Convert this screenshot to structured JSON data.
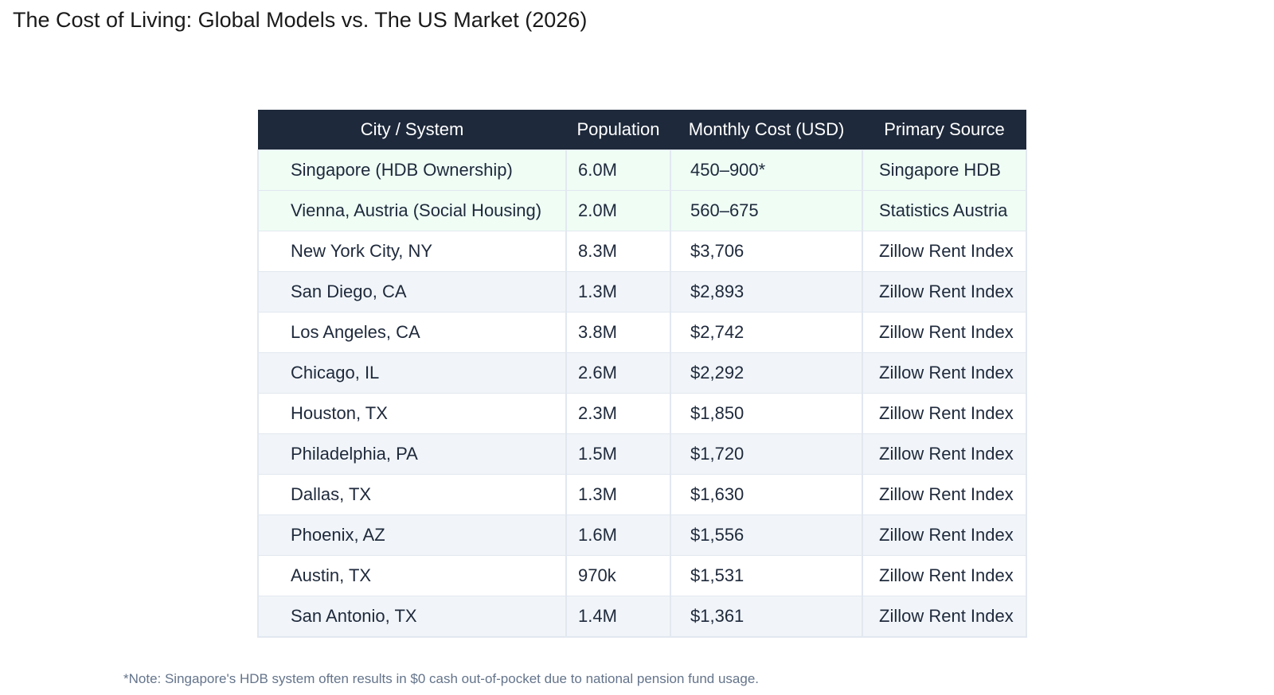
{
  "page": {
    "title": "The Cost of Living: Global Models vs. The US Market (2026)",
    "footnote": "*Note: Singapore's HDB system often results in $0 cash out-of-pocket due to national pension fund usage."
  },
  "colors": {
    "header_bg": "#1e293b",
    "model_row_bg": "#effdf5",
    "alt_row_bg": "#f1f5f9",
    "text": "#1e293b"
  },
  "table": {
    "headers": [
      "City / System",
      "Population",
      "Monthly Cost (USD)",
      "Primary Source"
    ],
    "rows": [
      [
        "Singapore (HDB Ownership)",
        "6.0M",
        "450–900*",
        "Singapore HDB"
      ],
      [
        "Vienna, Austria (Social Housing)",
        "2.0M",
        "560–675",
        "Statistics Austria"
      ],
      [
        "New York City, NY",
        "8.3M",
        "$3,706",
        "Zillow Rent Index"
      ],
      [
        "San Diego, CA",
        "1.3M",
        "$2,893",
        "Zillow Rent Index"
      ],
      [
        "Los Angeles, CA",
        "3.8M",
        "$2,742",
        "Zillow Rent Index"
      ],
      [
        "Chicago, IL",
        "2.6M",
        "$2,292",
        "Zillow Rent Index"
      ],
      [
        "Houston, TX",
        "2.3M",
        "$1,850",
        "Zillow Rent Index"
      ],
      [
        "Philadelphia, PA",
        "1.5M",
        "$1,720",
        "Zillow Rent Index"
      ],
      [
        "Dallas, TX",
        "1.3M",
        "$1,630",
        "Zillow Rent Index"
      ],
      [
        "Phoenix, AZ",
        "1.6M",
        "$1,556",
        "Zillow Rent Index"
      ],
      [
        "Austin, TX",
        "970k",
        "$1,531",
        "Zillow Rent Index"
      ],
      [
        "San Antonio, TX",
        "1.4M",
        "$1,361",
        "Zillow Rent Index"
      ]
    ]
  }
}
